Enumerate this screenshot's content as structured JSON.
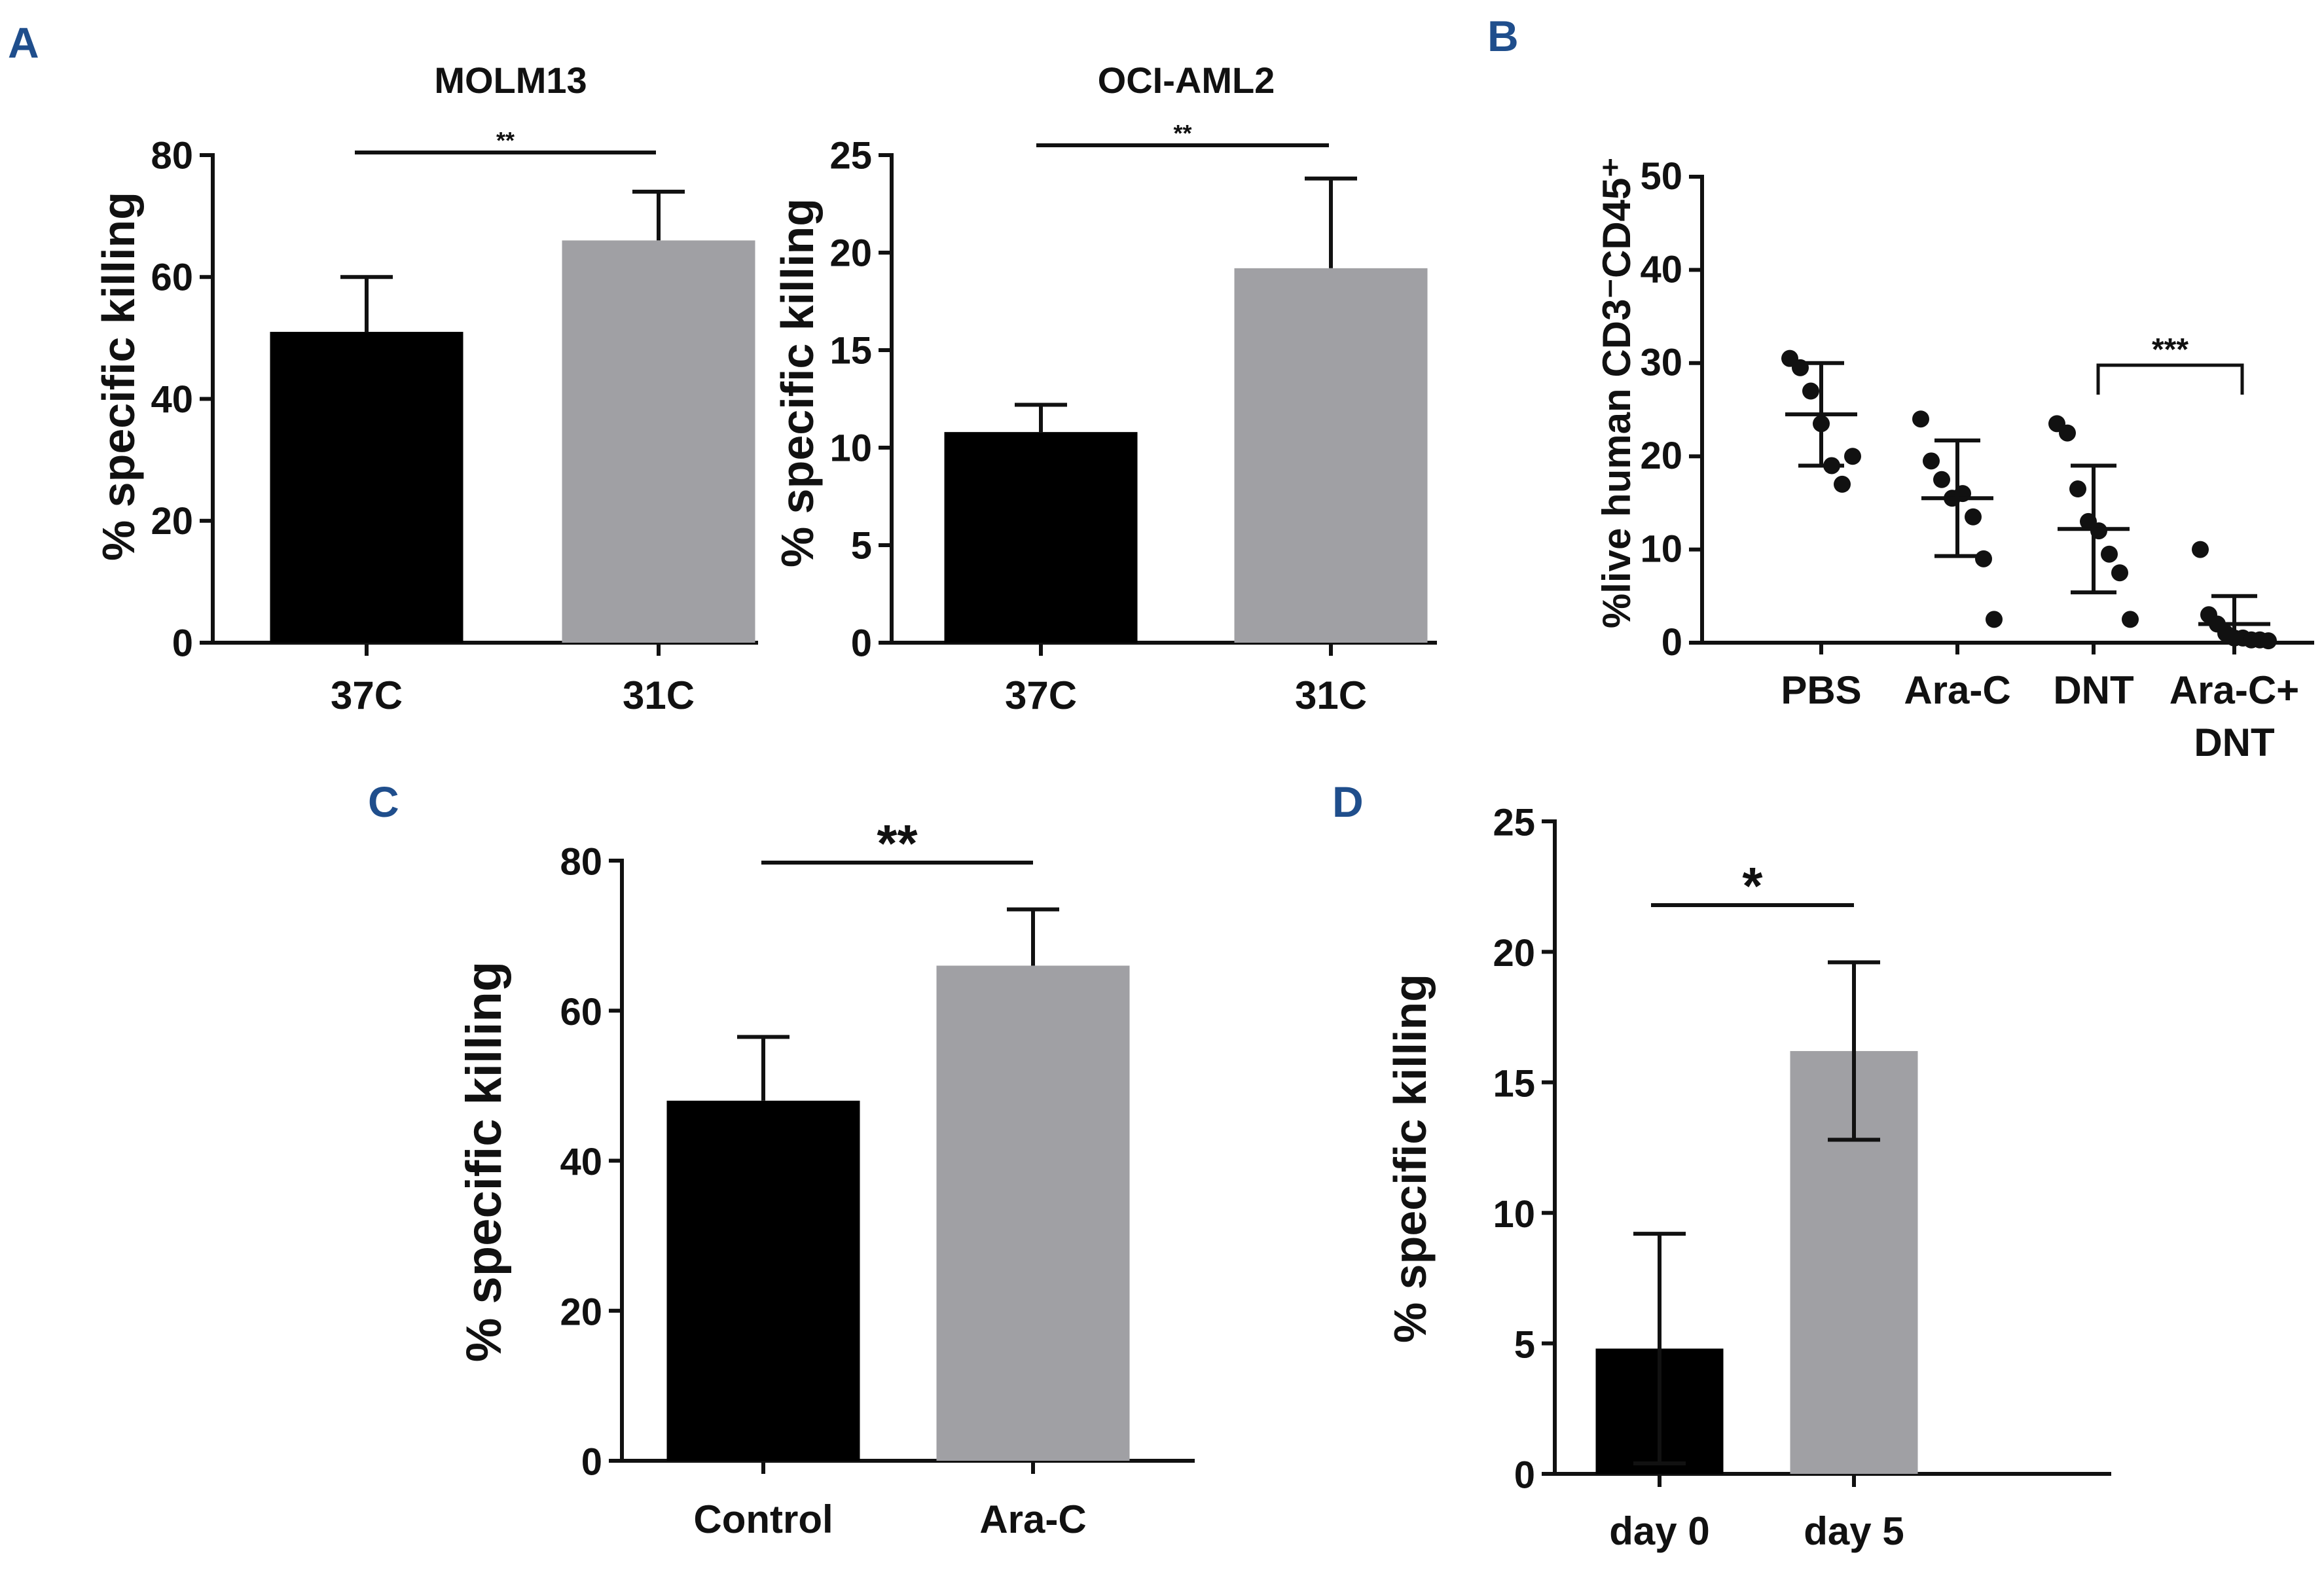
{
  "colors": {
    "bar_dark": "#000000",
    "bar_light": "#a0a0a4",
    "axis": "#111111",
    "panel_letter": "#1f4e8c"
  },
  "chart_data": [
    {
      "panel": "A",
      "type": "bar",
      "title": "MOLM13",
      "ylabel": "% specific killing",
      "ylim": [
        0,
        80
      ],
      "yticks": [
        0,
        20,
        40,
        60,
        80
      ],
      "categories": [
        "37C",
        "31C"
      ],
      "values": [
        51,
        66
      ],
      "errors": [
        9,
        8
      ],
      "significance": {
        "label": "**",
        "between": [
          0,
          1
        ]
      }
    },
    {
      "panel": "",
      "type": "bar",
      "title": "OCI-AML2",
      "ylabel": "% specific killing",
      "ylim": [
        0,
        25
      ],
      "yticks": [
        0,
        5,
        10,
        15,
        20,
        25
      ],
      "categories": [
        "37C",
        "31C"
      ],
      "values": [
        10.8,
        19.2
      ],
      "errors": [
        1.4,
        4.6
      ],
      "significance": {
        "label": "**",
        "between": [
          0,
          1
        ]
      }
    },
    {
      "panel": "B",
      "type": "scatter",
      "title": "",
      "ylabel": "%live human CD3⁻CD45⁺",
      "ylim": [
        0,
        50
      ],
      "yticks": [
        0,
        10,
        20,
        30,
        40,
        50
      ],
      "categories": [
        "PBS",
        "Ara-C",
        "DNT",
        "Ara-C+ DNT"
      ],
      "means": [
        24.5,
        15.5,
        12.2,
        2.0
      ],
      "sd": [
        5.5,
        6.2,
        6.8,
        3.0
      ],
      "points": [
        [
          30.5,
          29.5,
          27.0,
          23.5,
          19.0,
          17.0,
          20.0
        ],
        [
          24.0,
          19.5,
          17.5,
          15.5,
          16.0,
          13.5,
          9.0,
          2.5
        ],
        [
          23.5,
          22.5,
          16.5,
          13.0,
          12.0,
          9.5,
          7.5,
          2.5
        ],
        [
          10.0,
          3.0,
          2.0,
          1.0,
          0.5,
          0.5,
          0.3,
          0.3,
          0.2
        ]
      ],
      "significance": {
        "label": "***",
        "between": [
          2,
          3
        ]
      }
    },
    {
      "panel": "C",
      "type": "bar",
      "title": "",
      "ylabel": "% specific killing",
      "ylim": [
        0,
        80
      ],
      "yticks": [
        0,
        20,
        40,
        60,
        80
      ],
      "categories": [
        "Control",
        "Ara-C"
      ],
      "values": [
        48,
        66
      ],
      "errors": [
        8.5,
        7.5
      ],
      "significance": {
        "label": "**",
        "between": [
          0,
          1
        ]
      }
    },
    {
      "panel": "D",
      "type": "bar",
      "title": "",
      "ylabel": "% specific killing",
      "ylim": [
        0,
        25
      ],
      "yticks": [
        0,
        5,
        10,
        15,
        20,
        25
      ],
      "categories": [
        "day 0",
        "day 5"
      ],
      "values": [
        4.8,
        16.2
      ],
      "errors": [
        4.4,
        3.4
      ],
      "err_both": true,
      "significance": {
        "label": "*",
        "between": [
          0,
          1
        ]
      }
    }
  ]
}
